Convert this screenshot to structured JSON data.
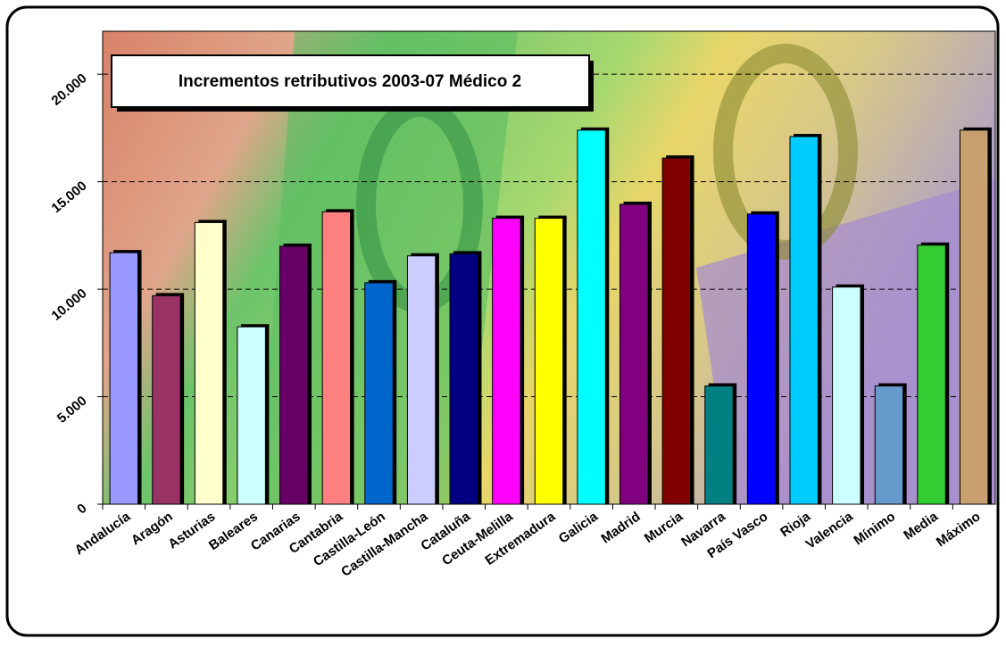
{
  "chart_data": {
    "type": "bar",
    "title": "Incrementos retributivos 2003-07 Médico 2",
    "categories": [
      "Andalucía",
      "Aragón",
      "Asturias",
      "Baleares",
      "Canarias",
      "Cantabria",
      "Castilla-León",
      "Castilla-Mancha",
      "Cataluña",
      "Ceuta-Melilla",
      "Extremadura",
      "Galicia",
      "Madrid",
      "Murcia",
      "Navarra",
      "País Vasco",
      "Rioja",
      "Valencia",
      "Mínimo",
      "Media",
      "Máximo"
    ],
    "values": [
      11700,
      9700,
      13100,
      8250,
      12000,
      13600,
      10300,
      11550,
      11650,
      13300,
      13300,
      17400,
      13950,
      16100,
      5500,
      13500,
      17100,
      10100,
      5500,
      12050,
      17400
    ],
    "colors": [
      "#9999ff",
      "#993366",
      "#ffffcc",
      "#ccffff",
      "#660066",
      "#ff8080",
      "#0066cc",
      "#ccccff",
      "#000080",
      "#ff00ff",
      "#ffff00",
      "#00ffff",
      "#800080",
      "#800000",
      "#008080",
      "#0000ff",
      "#00ccff",
      "#ccffff",
      "#6699cc",
      "#33cc33",
      "#c8a070"
    ],
    "ylim": [
      0,
      22000
    ],
    "yticks": [
      0,
      {
        "value": 5000,
        "label": "5.000"
      },
      {
        "value": 10000,
        "label": "10.000"
      },
      {
        "value": 15000,
        "label": "15.000"
      },
      {
        "value": 20000,
        "label": "20.000"
      }
    ],
    "grid": true
  }
}
